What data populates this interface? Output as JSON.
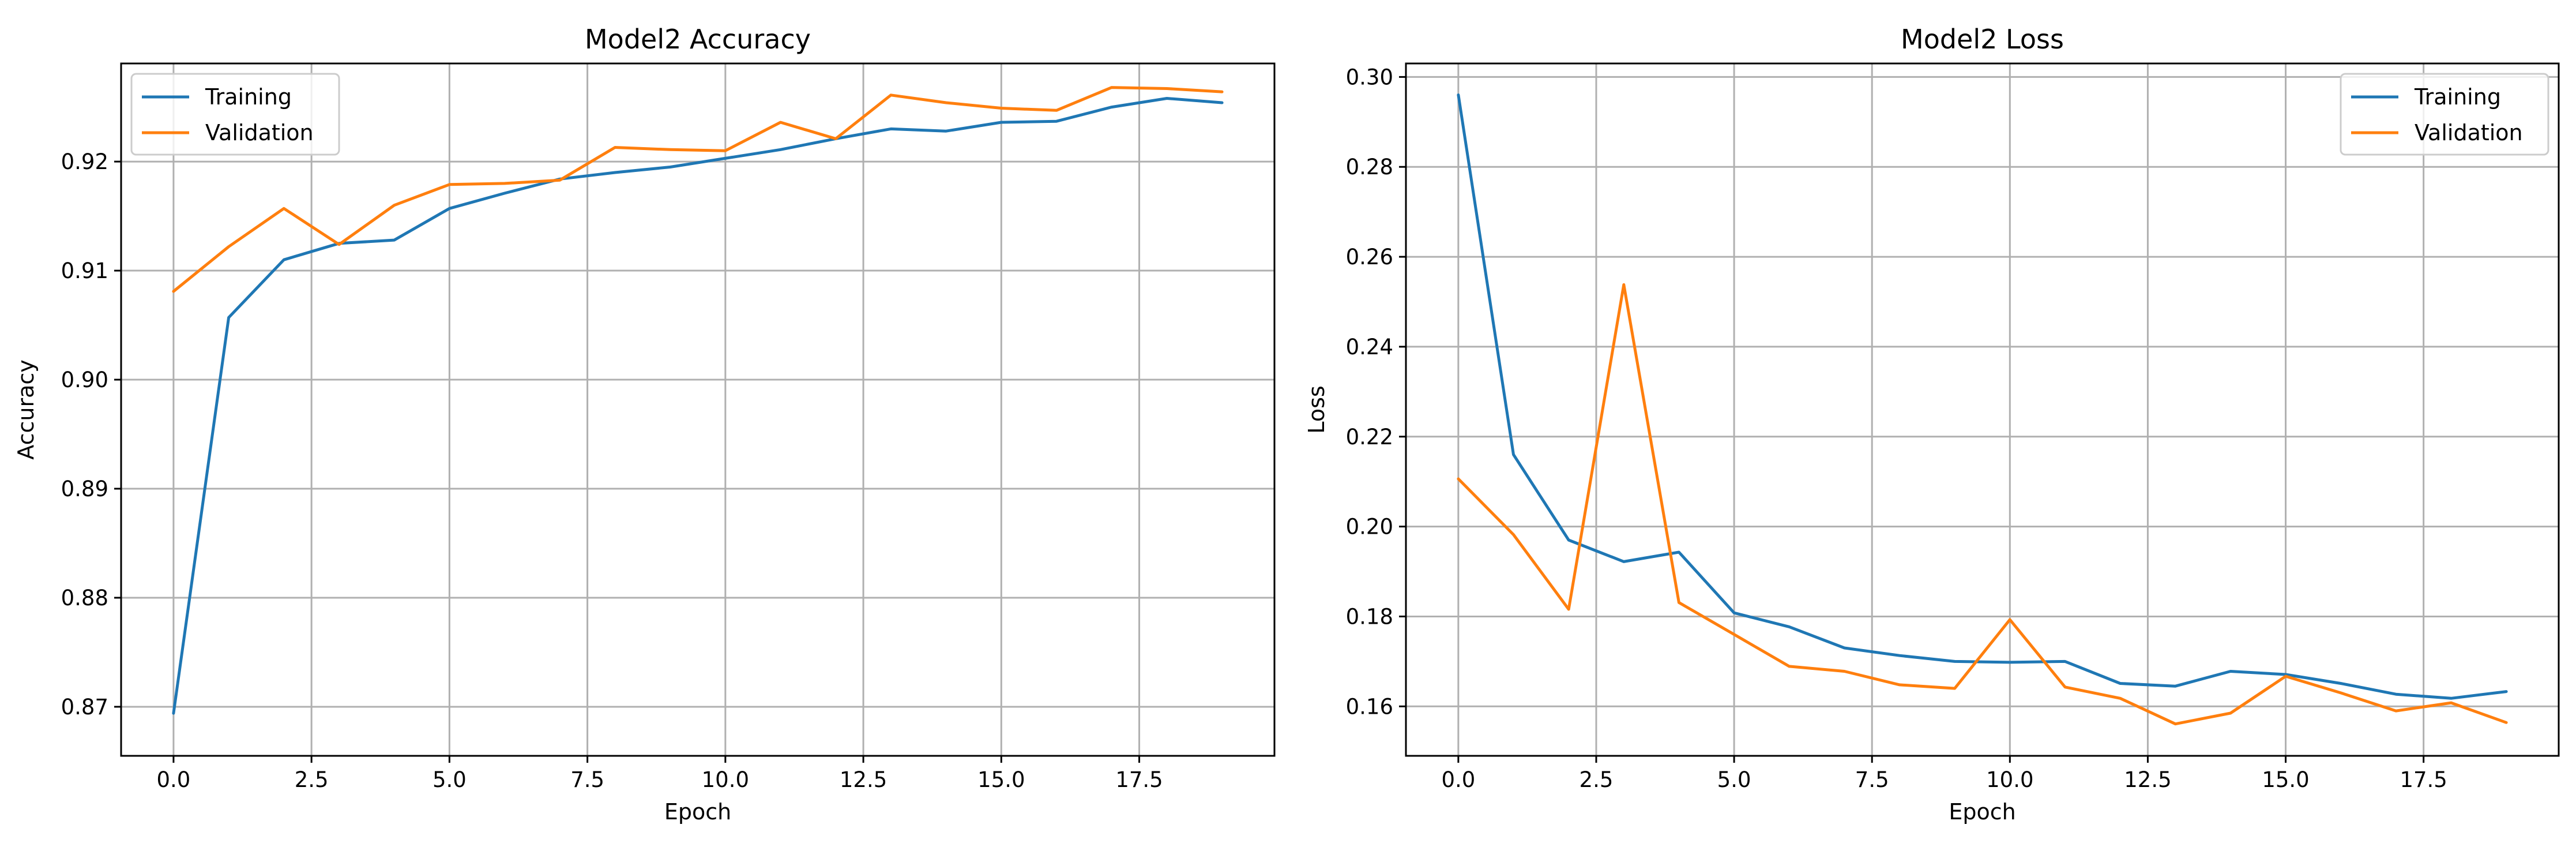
{
  "chart_data": [
    {
      "type": "line",
      "title": "Model2 Accuracy",
      "xlabel": "Epoch",
      "ylabel": "Accuracy",
      "x": [
        0,
        1,
        2,
        3,
        4,
        5,
        6,
        7,
        8,
        9,
        10,
        11,
        12,
        13,
        14,
        15,
        16,
        17,
        18,
        19
      ],
      "xlim": [
        -0.95,
        19.95
      ],
      "ylim": [
        0.8655,
        0.929
      ],
      "xticks": [
        0.0,
        2.5,
        5.0,
        7.5,
        10.0,
        12.5,
        15.0,
        17.5
      ],
      "xtick_labels": [
        "0.0",
        "2.5",
        "5.0",
        "7.5",
        "10.0",
        "12.5",
        "15.0",
        "17.5"
      ],
      "yticks": [
        0.87,
        0.88,
        0.89,
        0.9,
        0.91,
        0.92
      ],
      "ytick_labels": [
        "0.87",
        "0.88",
        "0.89",
        "0.90",
        "0.91",
        "0.92"
      ],
      "grid": true,
      "legend_position": "upper left",
      "series": [
        {
          "name": "Training",
          "color": "#1f77b4",
          "values": [
            0.8694,
            0.9057,
            0.911,
            0.9125,
            0.9128,
            0.9157,
            0.9171,
            0.9184,
            0.919,
            0.9195,
            0.9203,
            0.9211,
            0.9221,
            0.923,
            0.9228,
            0.9236,
            0.9237,
            0.925,
            0.9258,
            0.9254
          ]
        },
        {
          "name": "Validation",
          "color": "#ff7f0e",
          "values": [
            0.9081,
            0.9122,
            0.9157,
            0.9124,
            0.916,
            0.9179,
            0.918,
            0.9183,
            0.9213,
            0.9211,
            0.921,
            0.9236,
            0.9221,
            0.9261,
            0.9254,
            0.9249,
            0.9247,
            0.9268,
            0.9267,
            0.9264
          ]
        }
      ]
    },
    {
      "type": "line",
      "title": "Model2 Loss",
      "xlabel": "Epoch",
      "ylabel": "Loss",
      "x": [
        0,
        1,
        2,
        3,
        4,
        5,
        6,
        7,
        8,
        9,
        10,
        11,
        12,
        13,
        14,
        15,
        16,
        17,
        18,
        19
      ],
      "xlim": [
        -0.95,
        19.95
      ],
      "ylim": [
        0.149,
        0.303
      ],
      "xticks": [
        0.0,
        2.5,
        5.0,
        7.5,
        10.0,
        12.5,
        15.0,
        17.5
      ],
      "xtick_labels": [
        "0.0",
        "2.5",
        "5.0",
        "7.5",
        "10.0",
        "12.5",
        "15.0",
        "17.5"
      ],
      "yticks": [
        0.16,
        0.18,
        0.2,
        0.22,
        0.24,
        0.26,
        0.28,
        0.3
      ],
      "ytick_labels": [
        "0.16",
        "0.18",
        "0.20",
        "0.22",
        "0.24",
        "0.26",
        "0.28",
        "0.30"
      ],
      "grid": true,
      "legend_position": "upper right",
      "series": [
        {
          "name": "Training",
          "color": "#1f77b4",
          "values": [
            0.296,
            0.216,
            0.197,
            0.1922,
            0.1943,
            0.1808,
            0.1777,
            0.173,
            0.1713,
            0.17,
            0.1698,
            0.17,
            0.1651,
            0.1645,
            0.1678,
            0.1671,
            0.1651,
            0.1627,
            0.1618,
            0.1633
          ]
        },
        {
          "name": "Validation",
          "color": "#ff7f0e",
          "values": [
            0.2106,
            0.1982,
            0.1816,
            0.2538,
            0.1831,
            0.176,
            0.1689,
            0.1678,
            0.1648,
            0.164,
            0.1793,
            0.1643,
            0.1618,
            0.1561,
            0.1585,
            0.1667,
            0.163,
            0.159,
            0.1608,
            0.1564
          ]
        }
      ]
    }
  ]
}
